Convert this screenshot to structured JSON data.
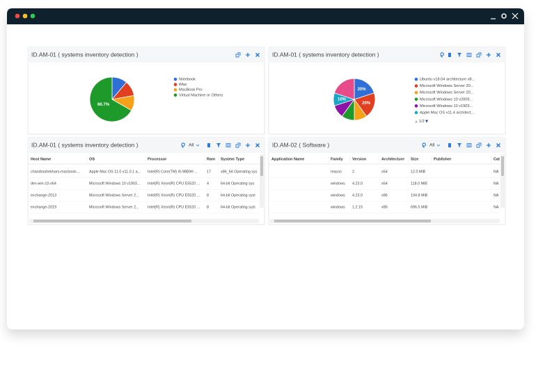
{
  "widgets": [
    {
      "title": "ID.AM-01 ( systems inventory detection )",
      "chart": {
        "type": "pie",
        "categories": [
          "Notebook",
          "iMac",
          "MacBook Pro",
          "Virtual Machine or Others"
        ],
        "values": [
          11.1,
          11.1,
          11.1,
          66.7
        ],
        "value_labels": [
          null,
          null,
          null,
          "66.7%"
        ],
        "colors": [
          "#2f6fd6",
          "#e0401f",
          "#f6a11a",
          "#1d9a2a"
        ]
      }
    },
    {
      "title": "ID.AM-01 ( systems inventory detection )",
      "chart": {
        "type": "pie",
        "categories": [
          "Ubuntu v18.04 architecture x8...",
          "Microsoft Windows Server 20...",
          "Microsoft Windows Server 20...",
          "Microsoft Windows 10 v2009...",
          "Microsoft Windows 10 v1903...",
          "Apple Mac OS v11.4 architect...",
          null
        ],
        "values": [
          20,
          20,
          10,
          10,
          10,
          10,
          20
        ],
        "value_labels": [
          "20%",
          "20%",
          null,
          null,
          null,
          "10%",
          null
        ],
        "colors": [
          "#2f6fd6",
          "#e0401f",
          "#f6a11a",
          "#1d9a2a",
          "#8e14a8",
          "#19a6c9",
          "#e84b8a"
        ],
        "pager": "1/2"
      }
    },
    {
      "title": "ID.AM-01 ( systems inventory detection )",
      "filter": "All",
      "table": {
        "columns": [
          "Host Name",
          "OS",
          "Processor",
          "Ram",
          "System Type"
        ],
        "rows": [
          [
            "chandrashekhars-macbook-...",
            "Apple Mac OS 11.0 x11.0.1 a...",
            "Intel(R) Core(TM) i9-9880H ...",
            "17",
            "x86_64 Operating sys"
          ],
          [
            "dev-win-10-x64",
            "Microsoft Windows 10 v1903...",
            "Intel(R) Xeon(R) CPU E5520 ...",
            "4",
            "64-bit Operating sys"
          ],
          [
            "exchange-2013",
            "Microsoft Windows Server 2...",
            "Intel(R) Xeon(R) CPU E5520 ...",
            "8",
            "64-bit Operating syst"
          ],
          [
            "exchange-2019",
            "Microsoft Windows Server 2...",
            "Intel(R) Xeon(R) CPU E5520 ...",
            "8",
            "64-bit Operating syst"
          ]
        ]
      }
    },
    {
      "title": "ID.AM-02 ( Software )",
      "filter": "All",
      "table": {
        "columns": [
          "Application Name",
          "Family",
          "Version",
          "Architecture",
          "Size",
          "Publisher",
          "Cat"
        ],
        "rows": [
          [
            null,
            "macos",
            "2",
            "x64",
            "12.0 MiB",
            null,
            "NA"
          ],
          [
            null,
            "windows",
            "4.23.0",
            "x64",
            "118.0 MiB",
            null,
            "NA"
          ],
          [
            null,
            "windows",
            "4.23.0",
            "x86",
            "104.8 MiB",
            null,
            "NA"
          ],
          [
            null,
            "windows",
            "1.2.15",
            "x86",
            "696.5 MiB",
            null,
            "NA"
          ]
        ]
      }
    }
  ]
}
